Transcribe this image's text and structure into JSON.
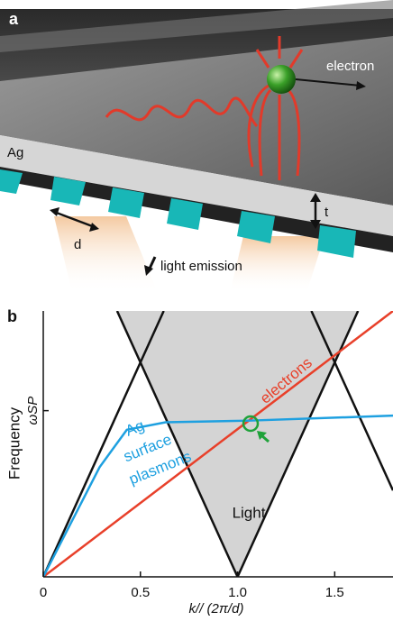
{
  "panel_a": {
    "label": "a",
    "electron": "electron",
    "metal": "Ag",
    "period": "d",
    "thickness": "t",
    "emission": "light emission"
  },
  "chart_data": {
    "type": "line",
    "panel_label": "b",
    "xlabel": "k// (2π/d)",
    "ylabel": "Frequency",
    "xlim": [
      0,
      1.8
    ],
    "xticks": [
      0,
      0.5,
      {
        "value": 1,
        "label": "1.0"
      },
      1.5
    ],
    "ylim": [
      0,
      1.6
    ],
    "yticks": [
      {
        "value": 1,
        "label": "ωSP"
      }
    ],
    "series": [
      {
        "color": "#111111",
        "x": [
          0,
          0.62
        ],
        "values": [
          0,
          1.6
        ]
      },
      {
        "color": "#111111",
        "x": [
          0.38,
          1.0
        ],
        "values": [
          1.6,
          0
        ]
      },
      {
        "color": "#111111",
        "x": [
          1.0,
          1.62
        ],
        "values": [
          0,
          1.6
        ]
      },
      {
        "color": "#111111",
        "x": [
          1.38,
          1.8
        ],
        "values": [
          1.6,
          0.52
        ]
      },
      {
        "color": "#e8402a",
        "x": [
          0,
          1.8
        ],
        "values": [
          0,
          1.6
        ]
      },
      {
        "color": "#1ea0e0",
        "x": [
          0,
          0.29,
          0.43,
          0.63,
          1.06,
          1.8
        ],
        "values": [
          0,
          0.66,
          0.885,
          0.93,
          0.94,
          0.97
        ]
      }
    ],
    "annotations": {
      "light": "Light",
      "electrons": "electrons",
      "plasmons": [
        "Ag",
        "surface",
        "plasmons"
      ]
    }
  }
}
